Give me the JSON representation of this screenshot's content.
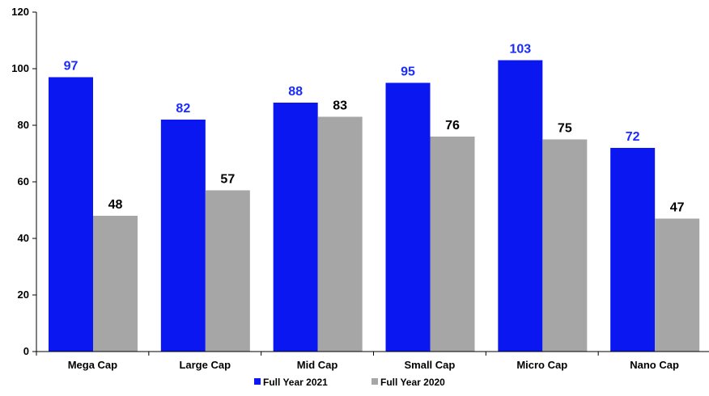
{
  "chart_data": {
    "type": "bar",
    "categories": [
      "Mega Cap",
      "Large Cap",
      "Mid Cap",
      "Small Cap",
      "Micro Cap",
      "Nano Cap"
    ],
    "series": [
      {
        "name": "Full Year 2021",
        "values": [
          97,
          82,
          88,
          95,
          103,
          72
        ],
        "color": "#0a17f0",
        "label_color": "#1a2bff"
      },
      {
        "name": "Full Year 2020",
        "values": [
          48,
          57,
          83,
          76,
          75,
          47
        ],
        "color": "#a6a6a6",
        "label_color": "#000000"
      }
    ],
    "ylim": [
      0,
      120
    ],
    "yticks": [
      0,
      20,
      40,
      60,
      80,
      100,
      120
    ],
    "grid": false,
    "legend": "bottom-center",
    "data_labels": true
  }
}
